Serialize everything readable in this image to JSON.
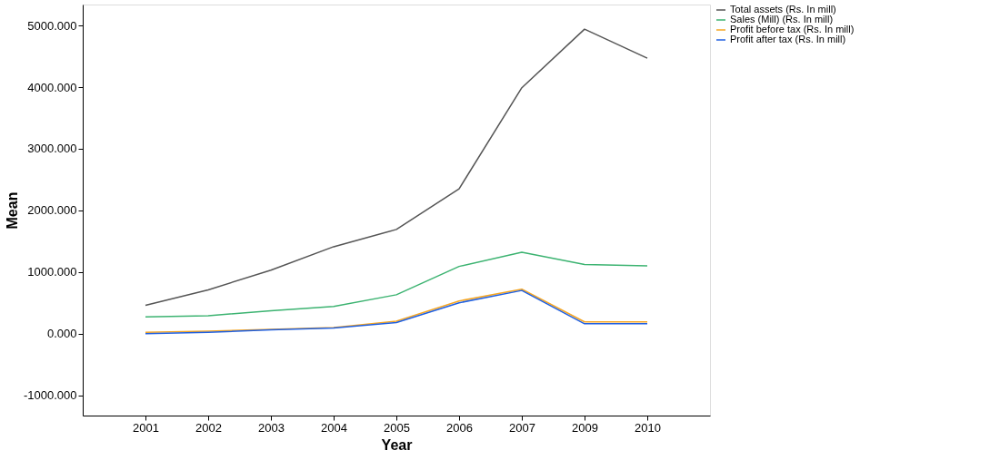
{
  "chart_data": {
    "type": "line",
    "xlabel": "Year",
    "ylabel": "Mean",
    "categories": [
      "2001",
      "2002",
      "2003",
      "2004",
      "2005",
      "2006",
      "2007",
      "2009",
      "2010"
    ],
    "series": [
      {
        "name": "Total assets (Rs. In mill)",
        "color": "#555555",
        "values": [
          460,
          710,
          1030,
          1410,
          1690,
          2350,
          3990,
          4940,
          4470
        ]
      },
      {
        "name": "Sales (Mill) (Rs. In mill)",
        "color": "#3cb371",
        "values": [
          270,
          290,
          370,
          440,
          630,
          1090,
          1320,
          1120,
          1100
        ]
      },
      {
        "name": "Profit before tax (Rs. In mill)",
        "color": "#f5a623",
        "values": [
          20,
          40,
          70,
          100,
          200,
          530,
          720,
          190,
          190
        ]
      },
      {
        "name": "Profit after tax (Rs. In mill)",
        "color": "#1f5fe0",
        "values": [
          0,
          20,
          60,
          90,
          180,
          500,
          700,
          160,
          160
        ]
      }
    ],
    "ylim": [
      -1330,
      5340
    ],
    "yticks": [
      {
        "value": -1000,
        "label": "-1000.000"
      },
      {
        "value": 0,
        "label": "0.000"
      },
      {
        "value": 1000,
        "label": "1000.000"
      },
      {
        "value": 2000,
        "label": "2000.000"
      },
      {
        "value": 3000,
        "label": "3000.000"
      },
      {
        "value": 4000,
        "label": "4000.000"
      },
      {
        "value": 5000,
        "label": "5000.000"
      }
    ],
    "grid": false,
    "legend": "top right",
    "marker": "none",
    "line_style": "solid"
  }
}
